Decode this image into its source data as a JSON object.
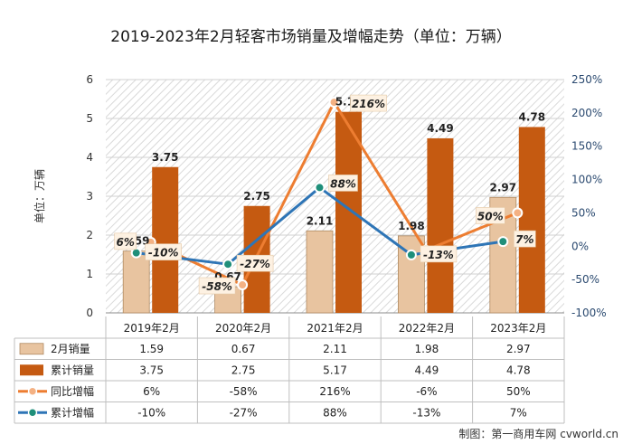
{
  "chart_data": {
    "type": "bar",
    "title": "2019-2023年2月轻客市场销量及增幅走势（单位：万辆）",
    "ylabel": "单位：万辆",
    "categories": [
      "2019年2月",
      "2020年2月",
      "2021年2月",
      "2022年2月",
      "2023年2月"
    ],
    "ylim": [
      0,
      6
    ],
    "yticks": [
      0,
      1,
      2,
      3,
      4,
      5,
      6
    ],
    "y2lim": [
      -100,
      250
    ],
    "y2ticks": [
      "-100%",
      "-50%",
      "0%",
      "50%",
      "100%",
      "150%",
      "200%",
      "250%"
    ],
    "y2tick_values": [
      -100,
      -50,
      0,
      50,
      100,
      150,
      200,
      250
    ],
    "series": [
      {
        "name": "2月销量",
        "kind": "bar",
        "axis": "left",
        "values": [
          1.59,
          0.67,
          2.11,
          1.98,
          2.97
        ],
        "labels": [
          "1.59",
          "0.67",
          "2.11",
          "1.98",
          "2.97"
        ],
        "table": [
          "1.59",
          "0.67",
          "2.11",
          "1.98",
          "2.97"
        ],
        "color": "#e8c4a0"
      },
      {
        "name": "累计销量",
        "kind": "bar",
        "axis": "left",
        "values": [
          3.75,
          2.75,
          5.17,
          4.49,
          4.78
        ],
        "labels": [
          "3.75",
          "2.75",
          "5.17",
          "4.49",
          "4.78"
        ],
        "table": [
          "3.75",
          "2.75",
          "5.17",
          "4.49",
          "4.78"
        ],
        "color": "#c55a11"
      },
      {
        "name": "同比增幅",
        "kind": "line",
        "axis": "right",
        "values": [
          6,
          -58,
          216,
          -6,
          50
        ],
        "labels": [
          "6%",
          "-58%",
          "216%",
          "",
          "50%"
        ],
        "table": [
          "6%",
          "-58%",
          "216%",
          "-6%",
          "50%"
        ],
        "color": "#ed7d31"
      },
      {
        "name": "累计增幅",
        "kind": "line",
        "axis": "right",
        "values": [
          -10,
          -27,
          88,
          -13,
          7
        ],
        "labels": [
          "-10%",
          "-27%",
          "88%",
          "-13%",
          "7%"
        ],
        "table": [
          "-10%",
          "-27%",
          "88%",
          "-13%",
          "7%"
        ],
        "color": "#2e75b6"
      }
    ],
    "grid": true,
    "legend": "data-table"
  },
  "footer": "制图：第一商用车网 cvworld.cn"
}
